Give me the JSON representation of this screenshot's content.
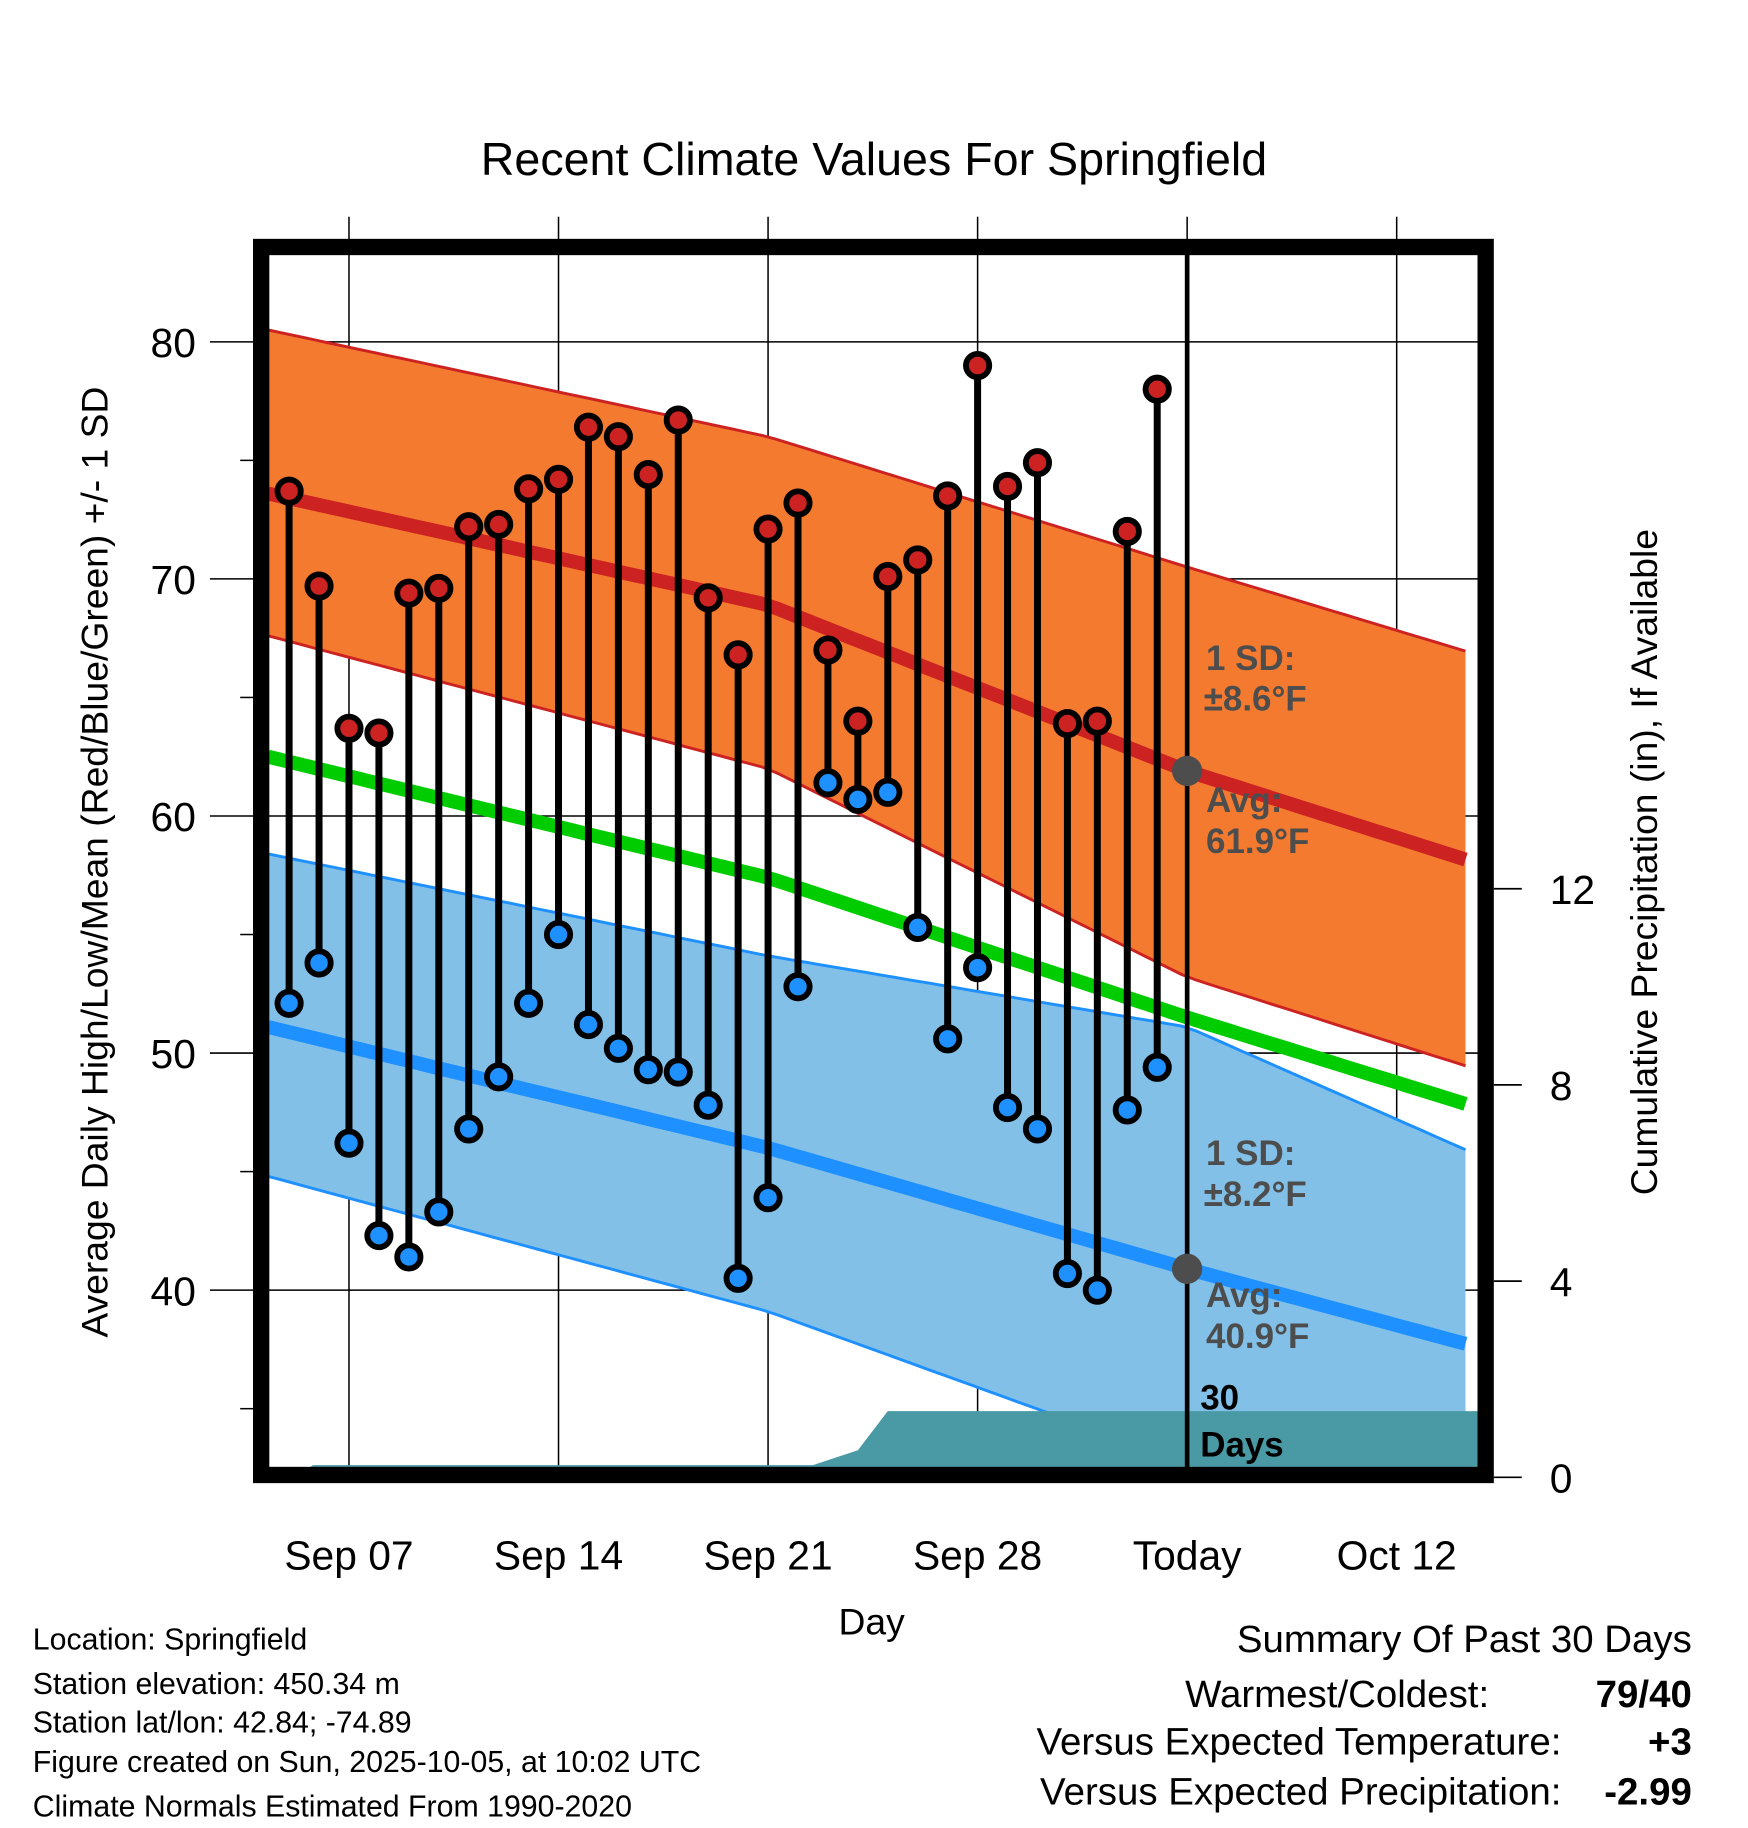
{
  "chart_data": {
    "type": "line",
    "title": "Recent Climate Values For Springfield",
    "xlabel": "Day",
    "ylabel": "Average Daily High/Low/Mean (Red/Blue/Green) +/- 1 SD",
    "y2label": "Cumulative Precipitation (in), If Available",
    "ylim": [
      32.4,
      84
    ],
    "y2lim": [
      0,
      16
    ],
    "grid": true,
    "y_ticks": [
      "80",
      "70",
      "60",
      "50",
      "40"
    ],
    "y_tick_values": [
      80,
      70,
      60,
      50,
      40
    ],
    "y2_ticks": [
      "12",
      "8",
      "4",
      "0"
    ],
    "y2_tick_values": [
      12,
      8,
      4,
      0
    ],
    "x_ticks": [
      "Sep 07",
      "Sep 14",
      "Sep 21",
      "Sep 28",
      "Today",
      "Oct 12"
    ],
    "x_tick_days": [
      2,
      9,
      16,
      23,
      30,
      37
    ],
    "x_day_origin": "Sep 05",
    "x_range_days": [
      -0.7,
      39.7
    ],
    "today_day": 30,
    "days": [
      "Sep 05",
      "Sep 06",
      "Sep 07",
      "Sep 08",
      "Sep 09",
      "Sep 10",
      "Sep 11",
      "Sep 12",
      "Sep 13",
      "Sep 14",
      "Sep 15",
      "Sep 16",
      "Sep 17",
      "Sep 18",
      "Sep 19",
      "Sep 20",
      "Sep 21",
      "Sep 22",
      "Sep 23",
      "Sep 24",
      "Sep 25",
      "Sep 26",
      "Sep 27",
      "Sep 28",
      "Sep 29",
      "Sep 30",
      "Oct 01",
      "Oct 02",
      "Oct 03",
      "Oct 04"
    ],
    "series": [
      {
        "name": "Daily High",
        "color": "#cc2222",
        "values": [
          73.7,
          69.7,
          63.7,
          63.5,
          69.4,
          69.6,
          72.2,
          72.3,
          73.8,
          74.2,
          76.4,
          76.0,
          74.4,
          76.7,
          69.2,
          66.8,
          72.1,
          73.2,
          67.0,
          64.0,
          70.1,
          70.8,
          73.5,
          79.0,
          73.9,
          74.9,
          63.9,
          64.0,
          72.0,
          78.0
        ]
      },
      {
        "name": "Daily Low",
        "color": "#1e90ff",
        "values": [
          52.1,
          53.8,
          46.2,
          42.3,
          41.4,
          43.3,
          46.8,
          49.0,
          52.1,
          55.0,
          51.2,
          50.2,
          49.3,
          49.2,
          47.8,
          40.5,
          43.9,
          52.8,
          61.4,
          60.7,
          61.0,
          55.3,
          50.6,
          53.6,
          47.7,
          46.8,
          40.7,
          40.0,
          47.6,
          49.4
        ]
      }
    ],
    "normals": {
      "knot_days": [
        -0.7,
        16,
        30,
        39.7
      ],
      "high_mean": [
        73.6,
        68.9,
        61.9,
        58.0
      ],
      "high_upper": [
        80.5,
        76.0,
        70.5,
        66.8
      ],
      "high_lower": [
        67.6,
        62.0,
        53.2,
        49.3
      ],
      "low_mean": [
        51.1,
        46.0,
        40.9,
        37.6
      ],
      "low_upper": [
        58.4,
        54.1,
        51.1,
        45.7
      ],
      "low_lower": [
        44.8,
        39.1,
        32.7,
        30.0
      ],
      "mean": [
        62.5,
        57.4,
        51.5,
        47.7
      ]
    },
    "precip_cumulative": {
      "days": [
        -0.7,
        0.2,
        0.8,
        17.5,
        18,
        19,
        20,
        39.7
      ],
      "values": [
        0,
        0,
        0.25,
        0.25,
        0.35,
        0.55,
        1.35,
        1.35
      ]
    },
    "annotations": {
      "high_sd_label": "1 SD:",
      "high_sd_value": "±8.6°F",
      "high_avg_label": "Avg:",
      "high_avg_value": "61.9°F",
      "low_sd_label": "1 SD:",
      "low_sd_value": "±8.2°F",
      "low_avg_label": "Avg:",
      "low_avg_value": "40.9°F",
      "period_num": "30",
      "period_unit": "Days"
    },
    "colors": {
      "high_band": "#f47a30",
      "high_line": "#cc2222",
      "low_band": "#82c0e8",
      "low_line": "#1e90ff",
      "mean_line": "#00cc00",
      "precip": "#4a9aa5",
      "annotation": "#4d4d4d"
    }
  },
  "footer": {
    "location": "Location: Springfield",
    "elevation": "Station elevation: 450.34 m",
    "latlon": "Station lat/lon: 42.84; -74.89",
    "created": "Figure created on Sun, 2025-10-05, at 10:02 UTC",
    "normals": "Climate Normals Estimated From 1990-2020"
  },
  "summary": {
    "title": "Summary Of Past 30 Days",
    "warm_cold_label": "Warmest/Coldest:",
    "warm_cold_value": "79/40",
    "temp_label": "Versus Expected Temperature:",
    "temp_value": "+3",
    "temp_color": "#d42a2a",
    "precip_label": "Versus Expected Precipitation:",
    "precip_value": "-2.99",
    "precip_color": "#a0522d"
  }
}
